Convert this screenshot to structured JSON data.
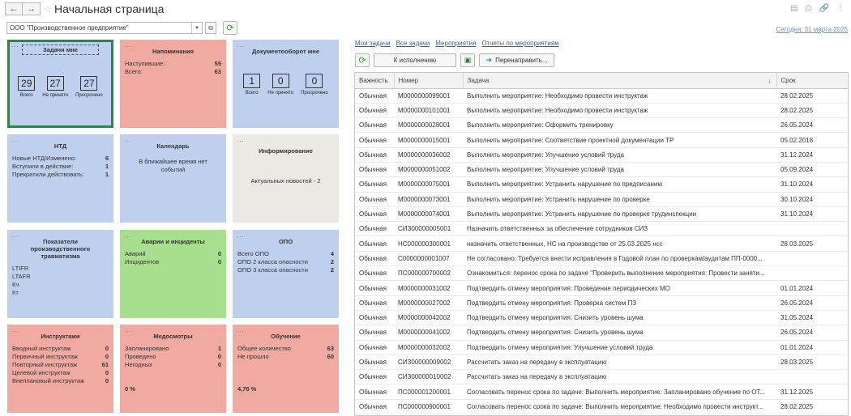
{
  "header": {
    "title": "Начальная страница",
    "back_icon": "←",
    "forward_icon": "→",
    "star_icon": "☆",
    "tool_icons": [
      "▤",
      "⎙",
      "🔗",
      "⋮"
    ]
  },
  "org": {
    "value": "ООО \"Производственное предприятие\"",
    "dropdown_icon": "▼",
    "link_icon": "⧉",
    "refresh_icon": "⟳"
  },
  "today_label": "Сегодня: 31 марта 2025",
  "tiles": {
    "tasks": {
      "title": "Задачи мне",
      "counters": [
        {
          "value": "29",
          "label": "Всего"
        },
        {
          "value": "27",
          "label": "Не принято"
        },
        {
          "value": "27",
          "label": "Просрочено"
        }
      ]
    },
    "reminders": {
      "title": "Напоминания",
      "rows": [
        {
          "label": "Наступившие:",
          "value": "55"
        },
        {
          "label": "Всего:",
          "value": "63"
        }
      ]
    },
    "docflow": {
      "title": "Документооборот мне",
      "counters": [
        {
          "value": "1",
          "label": "Всего"
        },
        {
          "value": "0",
          "label": "Не принято"
        },
        {
          "value": "0",
          "label": "Просрочено"
        }
      ]
    },
    "ntd": {
      "title": "НТД",
      "rows": [
        {
          "label": "Новые НТД/Изменено:",
          "value": "6"
        },
        {
          "label": "Вступили в действие:",
          "value": "1"
        },
        {
          "label": "Прекратили действовать:",
          "value": "1"
        }
      ]
    },
    "calendar": {
      "title": "Календарь",
      "text": "В ближайшее время нет событий"
    },
    "info": {
      "title": "Информирование",
      "text": "Актуальных новостей - 2"
    },
    "injury": {
      "title": "Показатели производственного травматизма",
      "rows": [
        "LTIFR",
        "LTAFR",
        "Кч",
        "Кт"
      ]
    },
    "accidents": {
      "title": "Аварии и инциденты",
      "rows": [
        {
          "label": "Аварий",
          "value": "0"
        },
        {
          "label": "Инцидентов",
          "value": "0"
        }
      ]
    },
    "opo": {
      "title": "ОПО",
      "rows": [
        {
          "label": "Всего ОПО",
          "value": "4"
        },
        {
          "label": "ОПО 2 класса опасности",
          "value": "2"
        },
        {
          "label": "ОПО 3 класса опасности",
          "value": "2"
        }
      ]
    },
    "briefings": {
      "title": "Инструктажи",
      "rows": [
        {
          "label": "Вводный инструктаж",
          "value": "0"
        },
        {
          "label": "Первичный инструктаж",
          "value": "0"
        },
        {
          "label": "Повторный инструктаж",
          "value": "61"
        },
        {
          "label": "Целевой инструктаж",
          "value": "0"
        },
        {
          "label": "Внеплановый инструктаж",
          "value": "0"
        }
      ]
    },
    "medical": {
      "title": "Медосмотры",
      "rows": [
        {
          "label": "Запланировано",
          "value": "1"
        },
        {
          "label": "Проведено",
          "value": "0"
        },
        {
          "label": "Негодных",
          "value": "0"
        }
      ],
      "percent": "0 %"
    },
    "training": {
      "title": "Обучение",
      "rows": [
        {
          "label": "Общее количество",
          "value": "63"
        },
        {
          "label": "Не прошло",
          "value": "60"
        }
      ],
      "percent": "4,76 %"
    }
  },
  "links": [
    "Мои задачи",
    "Все задачи",
    "Мероприятия",
    "Отчеты по мероприятиям"
  ],
  "toolbar": {
    "refresh_icon": "⟳",
    "execute_label": "К исполнению",
    "doc_icon": "▣",
    "forward_icon": "➜",
    "forward_label": "Перенаправить..."
  },
  "table": {
    "columns": [
      "Важность",
      "Номер",
      "Задача",
      "Срок"
    ],
    "sort_icon": "↓",
    "rows": [
      [
        "Обычная",
        "М0000000099001",
        "Выполнить мероприятие: Необходимо провести инструктаж",
        "28.02.2025"
      ],
      [
        "Обычная",
        "М0000000101001",
        "Выполнить мероприятие: Необходимо провести инструктаж",
        "28.02.2025"
      ],
      [
        "Обычная",
        "М0000000028001",
        "Выполнить мероприятие: Оформить тренировку",
        "26.05.2024"
      ],
      [
        "Обычная",
        "М0000000015001",
        "Выполнить мероприятие: Соответствие проектной документации ТР",
        "05.02.2018"
      ],
      [
        "Обычная",
        "М0000000036002",
        "Выполнить мероприятие: Улучшение условий труда",
        "31.12.2024"
      ],
      [
        "Обычная",
        "М0000000051002",
        "Выполнить мероприятие: Улучшение условий труда",
        "05.09.2024"
      ],
      [
        "Обычная",
        "М0000000075001",
        "Выполнить мероприятие: Устранить нарушение по предписанию",
        "31.10.2024"
      ],
      [
        "Обычная",
        "М0000000073001",
        "Выполнить мероприятие: Устранить нарушение по проверке",
        "30.10.2024"
      ],
      [
        "Обычная",
        "М0000000074001",
        "Выполнить мероприятие: Устранить нарушение по проверке трудинспекции",
        "31.10.2024"
      ],
      [
        "Обычная",
        "СИЗ00000005001",
        "Назначить ответственных за обеспечение сотрудников СИЗ",
        ""
      ],
      [
        "Обычная",
        "НС000000300001",
        "назначить ответственных, НС на производстве от 25.03.2025 нсс",
        "28.03.2025"
      ],
      [
        "Обычная",
        "С0000000001007",
        "Не согласовано. Требуется внести исправления в Годовой план по проверкам/аудитам ПП-0000...",
        ""
      ],
      [
        "Обычная",
        "ПС000000700002",
        "Ознакомиться: перенос срока по задаче \"Проверить выполнение мероприятия: Провести заняти...",
        ""
      ],
      [
        "Обычная",
        "М0000000031002",
        "Подтвердить отмену мероприятия: Проведение периодических МО",
        "01.01.2024"
      ],
      [
        "Обычная",
        "М0000000027002",
        "Подтвердить отмену мероприятия: Проверка систем ПЗ",
        "26.05.2024"
      ],
      [
        "Обычная",
        "М0000000042002",
        "Подтвердить отмену мероприятия: Снизить уровень шума",
        "31.05.2024"
      ],
      [
        "Обычная",
        "М0000000041002",
        "Подтвердить отмену мероприятия: Снизить уровень шума",
        "26.05.2024"
      ],
      [
        "Обычная",
        "М0000000032002",
        "Подтвердить отмену мероприятия: Улучшение условий труда",
        "01.01.2024"
      ],
      [
        "Обычная",
        "СИЗ00000009002",
        "Рассчитать заказ на передачу в эксплуатацию",
        "28.03.2025"
      ],
      [
        "Обычная",
        "СИЗ00000010002",
        "Рассчитать заказ на передачу в эксплуатацию",
        ""
      ],
      [
        "Обычная",
        "ПС000001200001",
        "Согласовать перенос срока по задаче: Выполнить мероприятие: Запланировано обучение по ОТ...",
        "31.12.2025"
      ],
      [
        "Обычная",
        "ПС000000900001",
        "Согласовать перенос срока по задаче: Выполнить мероприятие: Необходимо провести инструкт...",
        "28.02.2025"
      ]
    ]
  },
  "colors": {
    "blue_tile": "#bfd0ef",
    "pink_tile": "#f1aaa2",
    "green_tile": "#a8df8e",
    "gray_tile": "#ece8e4",
    "selected_outline": "#1f8e3d",
    "link": "#3b5e9c"
  }
}
